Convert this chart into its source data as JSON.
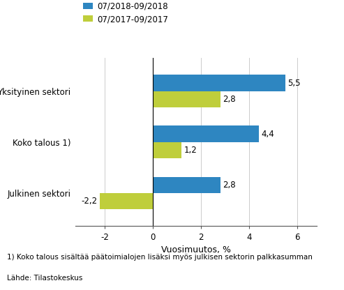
{
  "categories": [
    "Julkinen sektori",
    "Koko talous 1)",
    "Yksityinen sektori"
  ],
  "series_2018": [
    2.8,
    4.4,
    5.5
  ],
  "series_2017": [
    -2.2,
    1.2,
    2.8
  ],
  "color_2018": "#2E86C1",
  "color_2017": "#BFCE3B",
  "legend_2018": "07/2018-09/2018",
  "legend_2017": "07/2017-09/2017",
  "xlabel": "Vuosimuutos, %",
  "xlim": [
    -3.2,
    6.8
  ],
  "xticks": [
    -2,
    0,
    2,
    4,
    6
  ],
  "footnote1": "1) Koko talous sisältää päätoimialojen lisäksi myös julkisen sektorin palkkasumman",
  "footnote2": "Lähde: Tilastokeskus",
  "bar_height": 0.32,
  "label_fontsize": 8.5,
  "tick_fontsize": 8.5,
  "legend_fontsize": 8.5,
  "xlabel_fontsize": 9,
  "footnote_fontsize": 7.5
}
